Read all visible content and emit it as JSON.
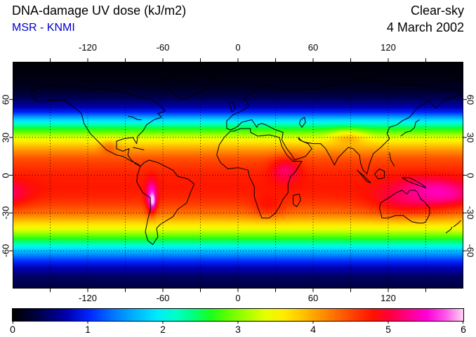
{
  "header": {
    "title": "DNA-damage UV dose (kJ/m2)",
    "source": "MSR - KNMI",
    "condition": "Clear-sky",
    "date": "4 March 2002"
  },
  "colors": {
    "source_blue": "#0000cc",
    "frame": "#000000",
    "background": "#ffffff"
  },
  "chart_data": {
    "type": "heatmap",
    "title": "DNA-damage UV dose (kJ/m2)",
    "source": "MSR - KNMI",
    "condition": "Clear-sky",
    "date": "4 March 2002",
    "units": "kJ/m2",
    "projection": "equirectangular",
    "lon_range": [
      -180,
      180
    ],
    "lat_range": [
      -90,
      90
    ],
    "x_tick_labels": [
      -120,
      -60,
      0,
      60,
      120
    ],
    "y_tick_labels": [
      60,
      30,
      0,
      -30,
      -60
    ],
    "grid_step_deg": 30,
    "colorbar": {
      "min": 0,
      "max": 6,
      "ticks": [
        0,
        1,
        2,
        3,
        4,
        5,
        6
      ],
      "stops": [
        {
          "pos": 0.0,
          "color": "#000000"
        },
        {
          "pos": 0.06,
          "color": "#00004d"
        },
        {
          "pos": 0.12,
          "color": "#0000b3"
        },
        {
          "pos": 0.17,
          "color": "#0026ff"
        },
        {
          "pos": 0.22,
          "color": "#0073ff"
        },
        {
          "pos": 0.27,
          "color": "#00b3ff"
        },
        {
          "pos": 0.32,
          "color": "#00eaff"
        },
        {
          "pos": 0.36,
          "color": "#00ffcc"
        },
        {
          "pos": 0.4,
          "color": "#00ff80"
        },
        {
          "pos": 0.44,
          "color": "#1aff1a"
        },
        {
          "pos": 0.48,
          "color": "#66ff00"
        },
        {
          "pos": 0.52,
          "color": "#a6ff00"
        },
        {
          "pos": 0.56,
          "color": "#e6ff00"
        },
        {
          "pos": 0.6,
          "color": "#ffee00"
        },
        {
          "pos": 0.64,
          "color": "#ffc800"
        },
        {
          "pos": 0.68,
          "color": "#ff9900"
        },
        {
          "pos": 0.72,
          "color": "#ff6a00"
        },
        {
          "pos": 0.76,
          "color": "#ff3c00"
        },
        {
          "pos": 0.8,
          "color": "#ff1200"
        },
        {
          "pos": 0.84,
          "color": "#ff0040"
        },
        {
          "pos": 0.88,
          "color": "#ff0090"
        },
        {
          "pos": 0.92,
          "color": "#ff00d9"
        },
        {
          "pos": 0.96,
          "color": "#ff55e8"
        },
        {
          "pos": 1.0,
          "color": "#ffd0f4"
        }
      ]
    },
    "zonal_profile": [
      {
        "lat": 90,
        "value": 0.03
      },
      {
        "lat": 78,
        "value": 0.07
      },
      {
        "lat": 68,
        "value": 0.18
      },
      {
        "lat": 60,
        "value": 0.42
      },
      {
        "lat": 55,
        "value": 0.65
      },
      {
        "lat": 50,
        "value": 1.0
      },
      {
        "lat": 44,
        "value": 1.8
      },
      {
        "lat": 38,
        "value": 2.5
      },
      {
        "lat": 33,
        "value": 3.0
      },
      {
        "lat": 28,
        "value": 3.5
      },
      {
        "lat": 23,
        "value": 3.9
      },
      {
        "lat": 18,
        "value": 4.2
      },
      {
        "lat": 13,
        "value": 4.45
      },
      {
        "lat": 8,
        "value": 4.58
      },
      {
        "lat": 3,
        "value": 4.68
      },
      {
        "lat": -3,
        "value": 4.75
      },
      {
        "lat": -10,
        "value": 4.77
      },
      {
        "lat": -17,
        "value": 4.7
      },
      {
        "lat": -23,
        "value": 4.55
      },
      {
        "lat": -30,
        "value": 4.3
      },
      {
        "lat": -36,
        "value": 3.9
      },
      {
        "lat": -42,
        "value": 3.45
      },
      {
        "lat": -48,
        "value": 2.9
      },
      {
        "lat": -54,
        "value": 2.3
      },
      {
        "lat": -60,
        "value": 1.7
      },
      {
        "lat": -66,
        "value": 1.2
      },
      {
        "lat": -72,
        "value": 0.8
      },
      {
        "lat": -80,
        "value": 0.45
      },
      {
        "lat": -90,
        "value": 0.3
      }
    ],
    "hotspots": [
      {
        "name": "andes",
        "lon": -69,
        "lat": -18,
        "sigma_lon": 3,
        "sigma_lat": 9,
        "amp": 1.0
      },
      {
        "name": "andes-core",
        "lon": -68,
        "lat": -21,
        "sigma_lon": 1.6,
        "sigma_lat": 4,
        "amp": 0.6
      },
      {
        "name": "australia",
        "lon": 134,
        "lat": -22,
        "sigma_lon": 20,
        "sigma_lat": 8,
        "amp": 0.45
      },
      {
        "name": "south-pacific",
        "lon": 168,
        "lat": -16,
        "sigma_lon": 16,
        "sigma_lat": 7,
        "amp": 0.5
      },
      {
        "name": "east-africa",
        "lon": 38,
        "lat": 5,
        "sigma_lon": 8,
        "sigma_lat": 7,
        "amp": 0.5
      },
      {
        "name": "southern-africa",
        "lon": 24,
        "lat": -26,
        "sigma_lon": 9,
        "sigma_lat": 6,
        "amp": 0.3
      },
      {
        "name": "tibet",
        "lon": 88,
        "lat": 31,
        "sigma_lon": 10,
        "sigma_lat": 4,
        "amp": 0.6
      },
      {
        "name": "mexico",
        "lon": -103,
        "lat": 23,
        "sigma_lon": 5,
        "sigma_lat": 4,
        "amp": 0.35
      },
      {
        "name": "indonesia",
        "lon": 148,
        "lat": -8,
        "sigma_lon": 18,
        "sigma_lat": 6,
        "amp": 0.3
      }
    ],
    "coastlines": [
      [
        [
          -166,
          66
        ],
        [
          -160,
          58
        ],
        [
          -150,
          59
        ],
        [
          -140,
          60
        ],
        [
          -131,
          54
        ],
        [
          -125,
          49
        ],
        [
          -123,
          41
        ],
        [
          -118,
          33
        ],
        [
          -112,
          27
        ],
        [
          -105,
          20
        ],
        [
          -97,
          16
        ],
        [
          -92,
          15
        ],
        [
          -85,
          11
        ],
        [
          -80,
          9
        ],
        [
          -78,
          7
        ],
        [
          -82,
          9
        ],
        [
          -86,
          13
        ],
        [
          -88,
          16
        ],
        [
          -87,
          21
        ],
        [
          -92,
          19
        ],
        [
          -97,
          21
        ],
        [
          -97,
          27
        ],
        [
          -91,
          29
        ],
        [
          -84,
          30
        ],
        [
          -81,
          25
        ],
        [
          -80,
          31
        ],
        [
          -76,
          35
        ],
        [
          -73,
          40
        ],
        [
          -67,
          44
        ],
        [
          -61,
          46
        ],
        [
          -64,
          49
        ],
        [
          -58,
          51
        ],
        [
          -64,
          57
        ],
        [
          -70,
          60
        ],
        [
          -78,
          62
        ],
        [
          -85,
          64
        ],
        [
          -93,
          66
        ],
        [
          -102,
          68
        ],
        [
          -115,
          69
        ],
        [
          -128,
          70
        ],
        [
          -140,
          70
        ],
        [
          -155,
          71
        ],
        [
          -162,
          68
        ],
        [
          -166,
          66
        ]
      ],
      [
        [
          -78,
          7
        ],
        [
          -80,
          1
        ],
        [
          -81,
          -5
        ],
        [
          -76,
          -14
        ],
        [
          -70,
          -18
        ],
        [
          -70,
          -27
        ],
        [
          -72,
          -35
        ],
        [
          -74,
          -45
        ],
        [
          -72,
          -52
        ],
        [
          -68,
          -55
        ],
        [
          -64,
          -49
        ],
        [
          -65,
          -42
        ],
        [
          -62,
          -39
        ],
        [
          -57,
          -36
        ],
        [
          -52,
          -33
        ],
        [
          -48,
          -27
        ],
        [
          -41,
          -22
        ],
        [
          -38,
          -14
        ],
        [
          -35,
          -7
        ],
        [
          -40,
          -3
        ],
        [
          -48,
          -1
        ],
        [
          -52,
          4
        ],
        [
          -58,
          7
        ],
        [
          -64,
          10
        ],
        [
          -71,
          12
        ],
        [
          -75,
          10
        ],
        [
          -78,
          7
        ]
      ],
      [
        [
          -6,
          35
        ],
        [
          -11,
          30
        ],
        [
          -15,
          24
        ],
        [
          -17,
          16
        ],
        [
          -14,
          10
        ],
        [
          -8,
          5
        ],
        [
          0,
          6
        ],
        [
          8,
          4
        ],
        [
          9,
          -1
        ],
        [
          13,
          -9
        ],
        [
          13,
          -17
        ],
        [
          16,
          -26
        ],
        [
          19,
          -34
        ],
        [
          25,
          -34
        ],
        [
          30,
          -30
        ],
        [
          33,
          -25
        ],
        [
          36,
          -19
        ],
        [
          40,
          -14
        ],
        [
          40,
          -7
        ],
        [
          42,
          -1
        ],
        [
          46,
          3
        ],
        [
          51,
          11
        ],
        [
          44,
          11
        ],
        [
          39,
          16
        ],
        [
          35,
          23
        ],
        [
          33,
          30
        ],
        [
          25,
          32
        ],
        [
          16,
          31
        ],
        [
          10,
          34
        ],
        [
          10,
          37
        ],
        [
          2,
          37
        ],
        [
          -3,
          35
        ],
        [
          -6,
          35
        ]
      ],
      [
        [
          -9,
          37
        ],
        [
          -9,
          43
        ],
        [
          -4,
          48
        ],
        [
          1,
          50
        ],
        [
          8,
          54
        ],
        [
          8,
          57
        ],
        [
          5,
          61
        ],
        [
          11,
          65
        ],
        [
          18,
          70
        ],
        [
          26,
          71
        ],
        [
          31,
          70
        ],
        [
          38,
          66
        ],
        [
          45,
          68
        ],
        [
          55,
          69
        ],
        [
          68,
          69
        ],
        [
          77,
          72
        ],
        [
          90,
          75
        ],
        [
          103,
          77
        ],
        [
          115,
          74
        ],
        [
          128,
          72
        ],
        [
          140,
          72
        ],
        [
          152,
          70
        ],
        [
          163,
          69
        ],
        [
          172,
          67
        ],
        [
          179,
          65
        ],
        [
          174,
          62
        ],
        [
          165,
          60
        ],
        [
          158,
          53
        ],
        [
          152,
          59
        ],
        [
          143,
          53
        ],
        [
          137,
          46
        ],
        [
          131,
          43
        ],
        [
          127,
          40
        ],
        [
          121,
          38
        ],
        [
          119,
          33
        ],
        [
          121,
          29
        ],
        [
          114,
          22
        ],
        [
          108,
          17
        ],
        [
          105,
          9
        ],
        [
          103,
          1
        ],
        [
          100,
          4
        ],
        [
          98,
          9
        ],
        [
          97,
          16
        ],
        [
          92,
          21
        ],
        [
          88,
          22
        ],
        [
          85,
          19
        ],
        [
          80,
          14
        ],
        [
          77,
          8
        ],
        [
          74,
          14
        ],
        [
          70,
          21
        ],
        [
          66,
          25
        ],
        [
          60,
          25
        ],
        [
          54,
          26
        ],
        [
          49,
          28
        ],
        [
          48,
          30
        ],
        [
          51,
          27
        ],
        [
          56,
          25
        ],
        [
          59,
          21
        ],
        [
          54,
          15
        ],
        [
          45,
          12
        ],
        [
          43,
          16
        ],
        [
          39,
          21
        ],
        [
          35,
          28
        ],
        [
          36,
          34
        ],
        [
          30,
          36
        ],
        [
          26,
          38
        ],
        [
          22,
          40
        ],
        [
          19,
          41
        ],
        [
          16,
          40
        ],
        [
          15,
          38
        ],
        [
          13,
          41
        ],
        [
          11,
          44
        ],
        [
          7,
          43
        ],
        [
          3,
          42
        ],
        [
          0,
          39
        ],
        [
          -3,
          37
        ],
        [
          -6,
          36
        ],
        [
          -9,
          37
        ]
      ],
      [
        [
          114,
          -22
        ],
        [
          113,
          -26
        ],
        [
          115,
          -34
        ],
        [
          120,
          -34
        ],
        [
          126,
          -32
        ],
        [
          132,
          -32
        ],
        [
          136,
          -35
        ],
        [
          139,
          -37
        ],
        [
          144,
          -38
        ],
        [
          148,
          -38
        ],
        [
          150,
          -37
        ],
        [
          153,
          -31
        ],
        [
          153,
          -26
        ],
        [
          149,
          -21
        ],
        [
          146,
          -19
        ],
        [
          143,
          -13
        ],
        [
          141,
          -12
        ],
        [
          137,
          -12
        ],
        [
          135,
          -15
        ],
        [
          131,
          -12
        ],
        [
          126,
          -14
        ],
        [
          122,
          -17
        ],
        [
          117,
          -20
        ],
        [
          114,
          -22
        ]
      ],
      [
        [
          -45,
          60
        ],
        [
          -53,
          66
        ],
        [
          -59,
          72
        ],
        [
          -58,
          76
        ],
        [
          -48,
          81
        ],
        [
          -35,
          83
        ],
        [
          -22,
          82
        ],
        [
          -18,
          77
        ],
        [
          -22,
          70
        ],
        [
          -30,
          66
        ],
        [
          -39,
          62
        ],
        [
          -45,
          60
        ]
      ],
      [
        [
          44,
          -16
        ],
        [
          49,
          -15
        ],
        [
          50,
          -20
        ],
        [
          47,
          -25
        ],
        [
          44,
          -23
        ],
        [
          44,
          -16
        ]
      ],
      [
        [
          131,
          -2
        ],
        [
          137,
          -2
        ],
        [
          143,
          -5
        ],
        [
          148,
          -8
        ],
        [
          150,
          -10
        ],
        [
          144,
          -8
        ],
        [
          136,
          -5
        ],
        [
          131,
          -2
        ]
      ],
      [
        [
          109,
          1
        ],
        [
          113,
          5
        ],
        [
          117,
          3
        ],
        [
          117,
          -2
        ],
        [
          112,
          -3
        ],
        [
          109,
          1
        ]
      ],
      [
        [
          95,
          4
        ],
        [
          101,
          -1
        ],
        [
          106,
          -6
        ],
        [
          103,
          -5
        ],
        [
          97,
          2
        ],
        [
          95,
          4
        ]
      ],
      [
        [
          130,
          31
        ],
        [
          134,
          34
        ],
        [
          138,
          35
        ],
        [
          141,
          38
        ],
        [
          142,
          42
        ],
        [
          145,
          44
        ]
      ],
      [
        [
          -5,
          50
        ],
        [
          -2,
          53
        ],
        [
          -4,
          58
        ],
        [
          -7,
          57
        ],
        [
          -5,
          50
        ]
      ],
      [
        [
          -84,
          22
        ],
        [
          -79,
          21
        ],
        [
          -75,
          20
        ]
      ],
      [
        [
          166,
          -46
        ],
        [
          170,
          -43
        ],
        [
          171,
          -41
        ]
      ],
      [
        [
          172,
          -41
        ],
        [
          176,
          -38
        ],
        [
          178,
          -36
        ]
      ],
      [
        [
          121,
          18
        ],
        [
          122,
          12
        ],
        [
          125,
          7
        ]
      ],
      [
        [
          50,
          44
        ],
        [
          53,
          46
        ],
        [
          54,
          42
        ],
        [
          51,
          38
        ],
        [
          49,
          41
        ],
        [
          50,
          44
        ]
      ],
      [
        [
          -88,
          47
        ],
        [
          -84,
          46
        ],
        [
          -80,
          44
        ],
        [
          -77,
          44
        ]
      ]
    ]
  }
}
